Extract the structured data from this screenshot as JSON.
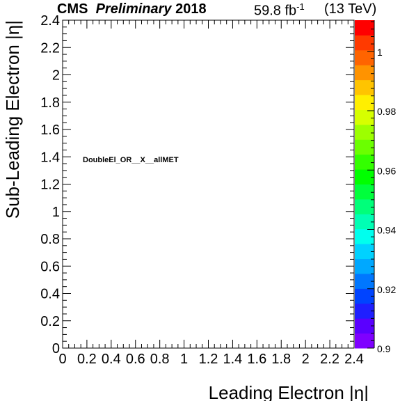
{
  "header": {
    "experiment": "CMS",
    "status": "Preliminary",
    "year": "2018",
    "lumi_value": "59.8 fb",
    "lumi_exp": "-1",
    "energy": "(13 TeV)"
  },
  "chart_data": {
    "type": "heatmap",
    "title": "",
    "annotation": "DoubleEl_OR__X__allMET",
    "xlabel": "Leading Electron |η|",
    "ylabel": "Sub-Leading Electron |η|",
    "xlim": [
      0,
      2.4
    ],
    "ylim": [
      0,
      2.4
    ],
    "x_ticks": [
      "0",
      "0.2",
      "0.4",
      "0.6",
      "0.8",
      "1",
      "1.2",
      "1.4",
      "1.6",
      "1.8",
      "2",
      "2.2",
      "2.4"
    ],
    "y_ticks": [
      "0",
      "0.2",
      "0.4",
      "0.6",
      "0.8",
      "1",
      "1.2",
      "1.4",
      "1.6",
      "1.8",
      "2",
      "2.2",
      "2.4"
    ],
    "cells": [],
    "colorbar": {
      "range": [
        0.9,
        1.0105
      ],
      "tick_labels": [
        "0.9",
        "0.92",
        "0.94",
        "0.96",
        "0.98",
        "1"
      ],
      "colors": [
        "#7f00ff",
        "#5a00ff",
        "#1f1fff",
        "#0044ff",
        "#0077ff",
        "#00a8ff",
        "#00d2ff",
        "#00ffee",
        "#00ffb4",
        "#00ff7a",
        "#00ff3c",
        "#00ff00",
        "#33ff00",
        "#6bff00",
        "#9dff00",
        "#d6ff00",
        "#ffef00",
        "#ffc400",
        "#ff9300",
        "#ff6400",
        "#ff3a00",
        "#ff0000"
      ]
    }
  }
}
